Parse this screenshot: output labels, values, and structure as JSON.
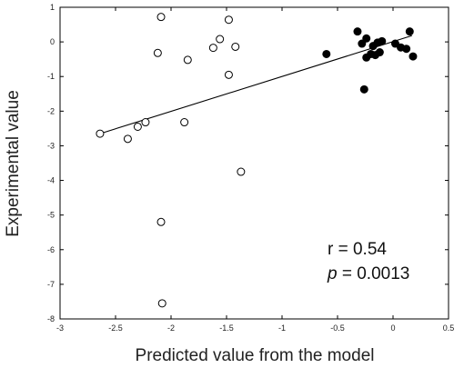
{
  "chart_data": {
    "type": "scatter",
    "xlabel": "Predicted value from the model",
    "ylabel": "Experimental value",
    "xlim": [
      -3,
      0.5
    ],
    "ylim": [
      -8,
      1
    ],
    "xticks": [
      "-3",
      "-2.5",
      "-2",
      "-1.5",
      "-1",
      "-0.5",
      "0",
      "0.5"
    ],
    "yticks": [
      "1",
      "0",
      "-1",
      "-2",
      "-3",
      "-4",
      "-5",
      "-6",
      "-7",
      "-8"
    ],
    "grid": false,
    "series": [
      {
        "marker": "open-circle",
        "color": "#000000",
        "points": [
          [
            -2.64,
            -2.65
          ],
          [
            -2.39,
            -2.8
          ],
          [
            -2.3,
            -2.45
          ],
          [
            -2.23,
            -2.32
          ],
          [
            -2.12,
            -0.32
          ],
          [
            -2.09,
            0.72
          ],
          [
            -2.09,
            -5.2
          ],
          [
            -2.08,
            -7.55
          ],
          [
            -1.88,
            -2.32
          ],
          [
            -1.85,
            -0.52
          ],
          [
            -1.62,
            -0.17
          ],
          [
            -1.56,
            0.08
          ],
          [
            -1.48,
            0.64
          ],
          [
            -1.48,
            -0.95
          ],
          [
            -1.42,
            -0.14
          ],
          [
            -1.37,
            -3.75
          ]
        ]
      },
      {
        "marker": "filled-circle",
        "color": "#000000",
        "points": [
          [
            -0.6,
            -0.35
          ],
          [
            -0.32,
            0.3
          ],
          [
            -0.28,
            -0.05
          ],
          [
            -0.24,
            -0.45
          ],
          [
            -0.24,
            0.1
          ],
          [
            -0.26,
            -1.37
          ],
          [
            -0.2,
            -0.35
          ],
          [
            -0.18,
            -0.12
          ],
          [
            -0.16,
            -0.38
          ],
          [
            -0.14,
            -0.02
          ],
          [
            -0.12,
            -0.3
          ],
          [
            -0.1,
            0.02
          ],
          [
            0.02,
            -0.05
          ],
          [
            0.07,
            -0.16
          ],
          [
            0.12,
            -0.2
          ],
          [
            0.15,
            0.3
          ],
          [
            0.18,
            -0.42
          ]
        ]
      }
    ],
    "fit_line": {
      "x": [
        -2.64,
        0.17
      ],
      "y": [
        -2.65,
        0.18
      ]
    },
    "annotations": {
      "r_text": "r = 0.54",
      "p_letter": "p",
      "p_value": " = 0.0013"
    }
  }
}
